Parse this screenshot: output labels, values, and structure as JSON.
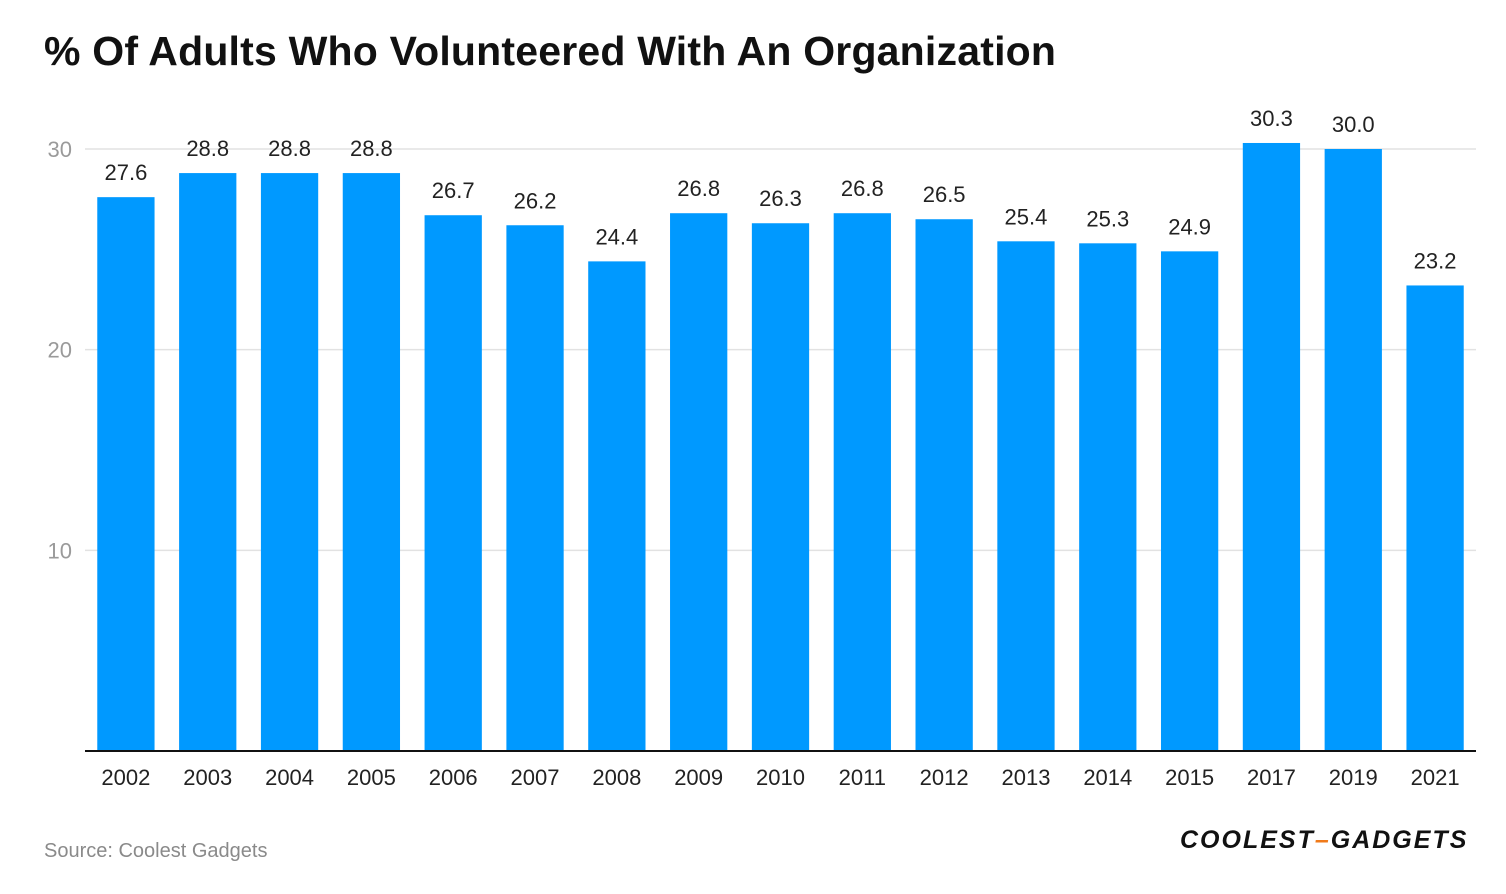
{
  "chart_data": {
    "type": "bar",
    "title": "% Of Adults Who Volunteered With An Organization",
    "categories": [
      "2002",
      "2003",
      "2004",
      "2005",
      "2006",
      "2007",
      "2008",
      "2009",
      "2010",
      "2011",
      "2012",
      "2013",
      "2014",
      "2015",
      "2017",
      "2019",
      "2021"
    ],
    "values": [
      27.6,
      28.8,
      28.8,
      28.8,
      26.7,
      26.2,
      24.4,
      26.8,
      26.3,
      26.8,
      26.5,
      25.4,
      25.3,
      24.9,
      30.3,
      30.0,
      23.2
    ],
    "value_labels": [
      "27.6",
      "28.8",
      "28.8",
      "28.8",
      "26.7",
      "26.2",
      "24.4",
      "26.8",
      "26.3",
      "26.8",
      "26.5",
      "25.4",
      "25.3",
      "24.9",
      "30.3",
      "30.0",
      "23.2"
    ],
    "xlabel": "",
    "ylabel": "",
    "ylim": [
      0,
      30
    ],
    "yticks": [
      10,
      20,
      30
    ],
    "ytick_labels": [
      "10",
      "20",
      "30"
    ],
    "grid": true,
    "bar_color": "#0099ff"
  },
  "footer": {
    "source": "Source: Coolest Gadgets",
    "logo_left": "COOLEST",
    "logo_dash": "–",
    "logo_right": "GADGETS"
  }
}
